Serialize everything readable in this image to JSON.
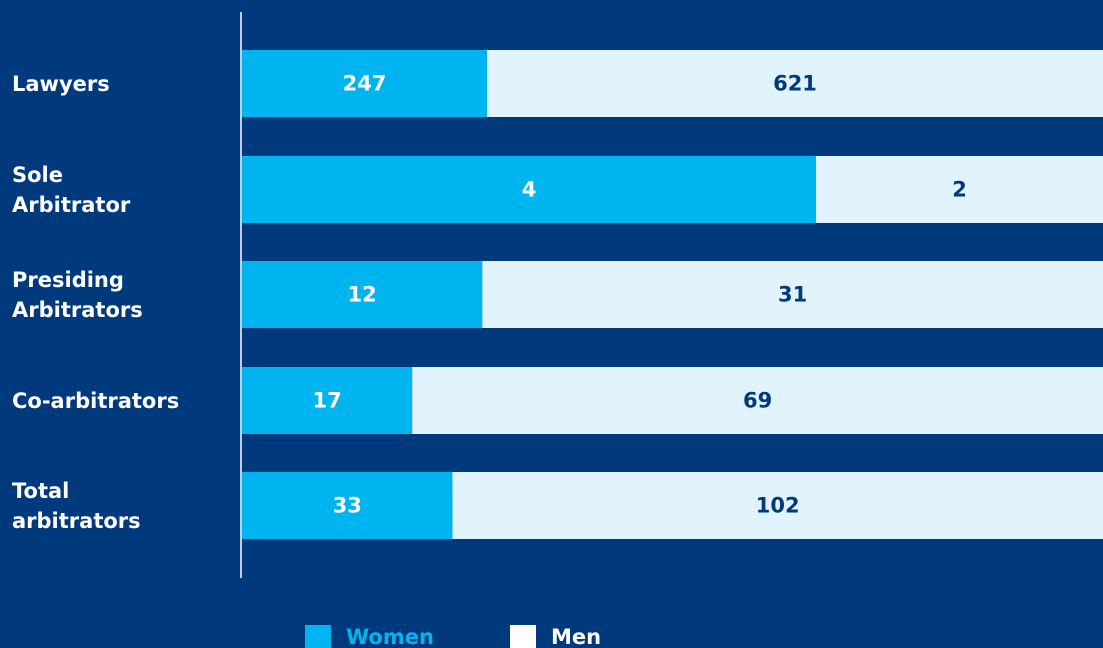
{
  "chart_data": {
    "type": "stacked_bar_100",
    "categories": [
      "Lawyers",
      "Sole\nArbitrator",
      "Presiding\nArbitrators",
      "Co-arbitrators",
      "Total\narbitrators"
    ],
    "series": [
      {
        "name": "Women",
        "color": "#00b5ef",
        "values": [
          247,
          4,
          12,
          17,
          33
        ]
      },
      {
        "name": "Men",
        "color": "#e1f3fc",
        "values": [
          621,
          2,
          31,
          69,
          102
        ]
      }
    ]
  }
}
